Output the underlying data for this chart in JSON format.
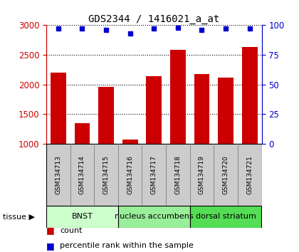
{
  "title": "GDS2344 / 1416021_a_at",
  "samples": [
    "GSM134713",
    "GSM134714",
    "GSM134715",
    "GSM134716",
    "GSM134717",
    "GSM134718",
    "GSM134719",
    "GSM134720",
    "GSM134721"
  ],
  "counts": [
    2195,
    1340,
    1960,
    1075,
    2145,
    2580,
    2175,
    2110,
    2630
  ],
  "percentiles": [
    97,
    97,
    96,
    93,
    97,
    98,
    96,
    97,
    97
  ],
  "bar_color": "#cc0000",
  "dot_color": "#0000cc",
  "ylim_left": [
    1000,
    3000
  ],
  "ylim_right": [
    0,
    100
  ],
  "yticks_left": [
    1000,
    1500,
    2000,
    2500,
    3000
  ],
  "yticks_right": [
    0,
    25,
    50,
    75,
    100
  ],
  "tissues": [
    {
      "label": "BNST",
      "start": 0,
      "end": 3,
      "color": "#ccffcc"
    },
    {
      "label": "nucleus accumbens",
      "start": 3,
      "end": 6,
      "color": "#99ee99"
    },
    {
      "label": "dorsal striatum",
      "start": 6,
      "end": 9,
      "color": "#55dd55"
    }
  ],
  "tissue_label": "tissue",
  "legend_count_label": "count",
  "legend_pct_label": "percentile rank within the sample",
  "background_color": "#ffffff",
  "plot_bg_color": "#ffffff",
  "sample_bg_color": "#cccccc",
  "sample_border_color": "#888888",
  "grid_color": "#000000",
  "tick_label_color_left": "#cc0000",
  "tick_label_color_right": "#0000cc"
}
